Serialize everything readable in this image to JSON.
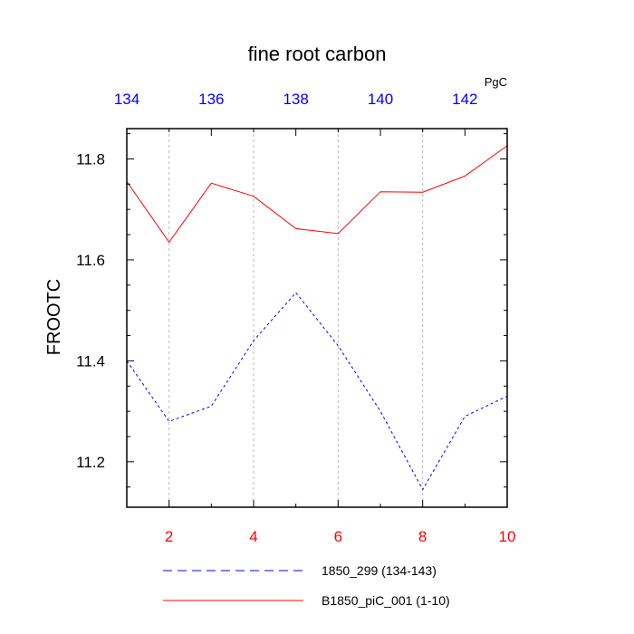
{
  "chart_data": {
    "type": "line",
    "title": "fine root carbon",
    "units": "PgC",
    "ylabel": "FROOTC",
    "ylim": [
      11.11,
      11.86
    ],
    "yticks": [
      11.2,
      11.4,
      11.6,
      11.8
    ],
    "ytick_labels": [
      "11.2",
      "11.4",
      "11.6",
      "11.8"
    ],
    "bottom_axis": {
      "xlim": [
        1,
        10
      ],
      "ticks": [
        2,
        4,
        6,
        8,
        10
      ],
      "tick_labels": [
        "2",
        "4",
        "6",
        "8",
        "10"
      ],
      "color": "#ff0000"
    },
    "top_axis": {
      "xlim": [
        134,
        143
      ],
      "ticks": [
        134,
        136,
        138,
        140,
        142
      ],
      "tick_labels": [
        "134",
        "136",
        "138",
        "140",
        "142"
      ],
      "color": "#0000ff"
    },
    "grid": "vertical dashed at bottom-axis even ticks",
    "series": [
      {
        "name": "1850_299 (134-143)",
        "axis": "top",
        "color": "#0000ff",
        "style": "dashed",
        "x": [
          134,
          135,
          136,
          137,
          138,
          139,
          140,
          141,
          142,
          143
        ],
        "values": [
          11.4,
          11.28,
          11.31,
          11.44,
          11.535,
          11.43,
          11.3,
          11.145,
          11.29,
          11.33
        ]
      },
      {
        "name": "B1850_piC_001 (1-10)",
        "axis": "bottom",
        "color": "#ff0000",
        "style": "solid",
        "x": [
          1,
          2,
          3,
          4,
          5,
          6,
          7,
          8,
          9,
          10
        ],
        "values": [
          11.755,
          11.635,
          11.752,
          11.726,
          11.662,
          11.652,
          11.735,
          11.734,
          11.766,
          11.826
        ]
      }
    ],
    "legend_position": "bottom"
  }
}
